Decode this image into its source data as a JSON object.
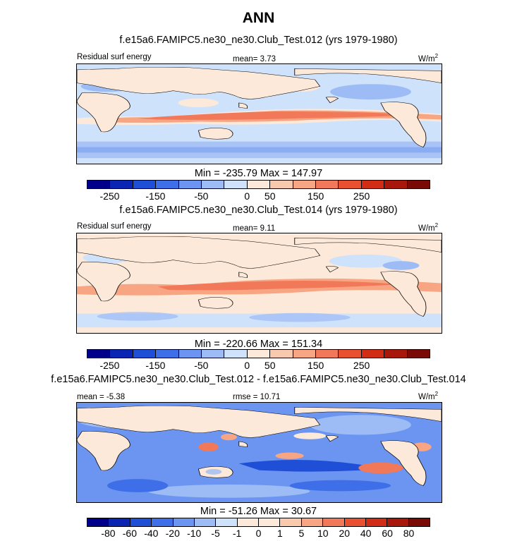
{
  "title": "ANN",
  "unit_base": "W/m",
  "unit_exp": "2",
  "panels": [
    {
      "case": "f.e15a6.FAMIPC5.ne30_ne30.Club_Test.012 (yrs 1979-1980)",
      "left_label": "Residual surf energy",
      "center_label": "mean=   3.73",
      "minmax": "Min = -235.79 Max = 147.97"
    },
    {
      "case": "f.e15a6.FAMIPC5.ne30_ne30.Club_Test.014 (yrs 1979-1980)",
      "left_label": "Residual surf energy",
      "center_label": "mean=   9.11",
      "minmax": "Min = -220.66 Max = 151.34"
    },
    {
      "case": "f.e15a6.FAMIPC5.ne30_ne30.Club_Test.012 - f.e15a6.FAMIPC5.ne30_ne30.Club_Test.014",
      "left_label": "mean =  -5.38",
      "center_label": "rmse =  10.71",
      "minmax": "Min = -51.26 Max =  30.67"
    }
  ],
  "colorbars": {
    "field": {
      "colors": [
        "#00008b",
        "#0a24b3",
        "#1f4fd6",
        "#3f6fe8",
        "#6b95f0",
        "#9dbcf5",
        "#cfe2fb",
        "#fde9d9",
        "#f9c9ad",
        "#f7a582",
        "#f1795a",
        "#e8502f",
        "#d12d16",
        "#a8170b",
        "#7a0a05"
      ],
      "tick_labels": [
        "-250",
        "-150",
        "-50",
        "0",
        "50",
        "150",
        "250"
      ],
      "tick_boundaries": [
        1,
        3,
        5,
        7,
        8,
        10,
        12
      ]
    },
    "diff": {
      "colors": [
        "#00008b",
        "#0a24b3",
        "#1f4fd6",
        "#3f6fe8",
        "#6b95f0",
        "#9dbcf5",
        "#cfe2fb",
        "#fde9d9",
        "#fde9d9",
        "#f9c9ad",
        "#f7a582",
        "#f1795a",
        "#e8502f",
        "#d12d16",
        "#a8170b",
        "#7a0a05"
      ],
      "tick_labels": [
        "-80",
        "-60",
        "-40",
        "-20",
        "-10",
        "-5",
        "-1",
        "0",
        "1",
        "5",
        "10",
        "20",
        "40",
        "60",
        "80"
      ],
      "tick_boundaries": [
        1,
        2,
        3,
        4,
        5,
        6,
        7,
        8,
        9,
        10,
        11,
        12,
        13,
        14,
        15
      ]
    }
  },
  "chart_data": [
    {
      "type": "heatmap",
      "title": "f.e15a6.FAMIPC5.ne30_ne30.Club_Test.012 (yrs 1979-1980)",
      "variable": "Residual surf energy",
      "units": "W/m2",
      "mean": 3.73,
      "min": -235.79,
      "max": 147.97,
      "levels": [
        -300,
        -250,
        -200,
        -150,
        -100,
        -50,
        -25,
        0,
        25,
        50,
        100,
        150,
        200,
        250,
        300
      ],
      "projection": "cylindrical equidistant, longitude 0-360, latitude -90-90"
    },
    {
      "type": "heatmap",
      "title": "f.e15a6.FAMIPC5.ne30_ne30.Club_Test.014 (yrs 1979-1980)",
      "variable": "Residual surf energy",
      "units": "W/m2",
      "mean": 9.11,
      "min": -220.66,
      "max": 151.34,
      "levels": [
        -300,
        -250,
        -200,
        -150,
        -100,
        -50,
        -25,
        0,
        25,
        50,
        100,
        150,
        200,
        250,
        300
      ],
      "projection": "cylindrical equidistant, longitude 0-360, latitude -90-90"
    },
    {
      "type": "heatmap",
      "title": "f.e15a6.FAMIPC5.ne30_ne30.Club_Test.012 - f.e15a6.FAMIPC5.ne30_ne30.Club_Test.014",
      "units": "W/m2",
      "mean": -5.38,
      "rmse": 10.71,
      "min": -51.26,
      "max": 30.67,
      "levels": [
        -80,
        -60,
        -40,
        -20,
        -10,
        -5,
        -1,
        0,
        1,
        5,
        10,
        20,
        40,
        60,
        80
      ],
      "projection": "cylindrical equidistant, longitude 0-360, latitude -90-90"
    }
  ]
}
